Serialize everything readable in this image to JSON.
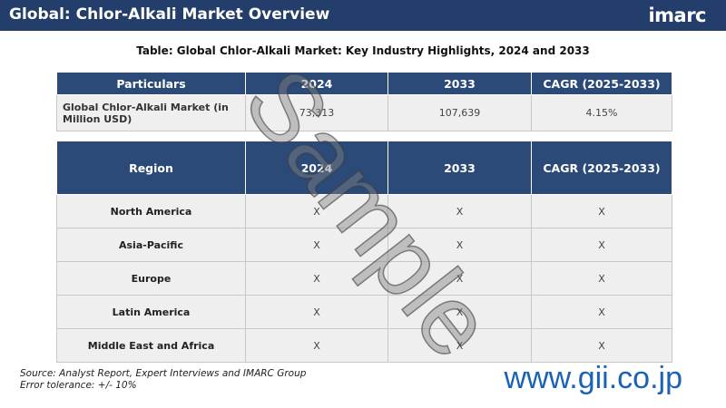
{
  "header": {
    "title": "Global: Chlor-Alkali Market Overview",
    "logo": "imarc"
  },
  "subtitle": "Table: Global Chlor-Alkali Market: Key Industry Highlights, 2024 and 2033",
  "table1": {
    "headers": [
      "Particulars",
      "2024",
      "2033",
      "CAGR (2025-2033)"
    ],
    "rows": [
      [
        "Global Chlor-Alkali Market (in Million USD)",
        "73,313",
        "107,639",
        "4.15%"
      ]
    ]
  },
  "table2": {
    "headers": [
      "Region",
      "2024",
      "2033",
      "CAGR (2025-2033)"
    ],
    "rows": [
      [
        "North America",
        "X",
        "X",
        "X"
      ],
      [
        "Asia-Pacific",
        "X",
        "X",
        "X"
      ],
      [
        "Europe",
        "X",
        "X",
        "X"
      ],
      [
        "Latin America",
        "X",
        "X",
        "X"
      ],
      [
        "Middle East and Africa",
        "X",
        "X",
        "X"
      ]
    ]
  },
  "footer": {
    "source": "Source: Analyst Report, Expert Interviews and IMARC Group",
    "tolerance": "Error tolerance: +/- 10%"
  },
  "watermark": "Sample",
  "site": "www.gii.co.jp"
}
